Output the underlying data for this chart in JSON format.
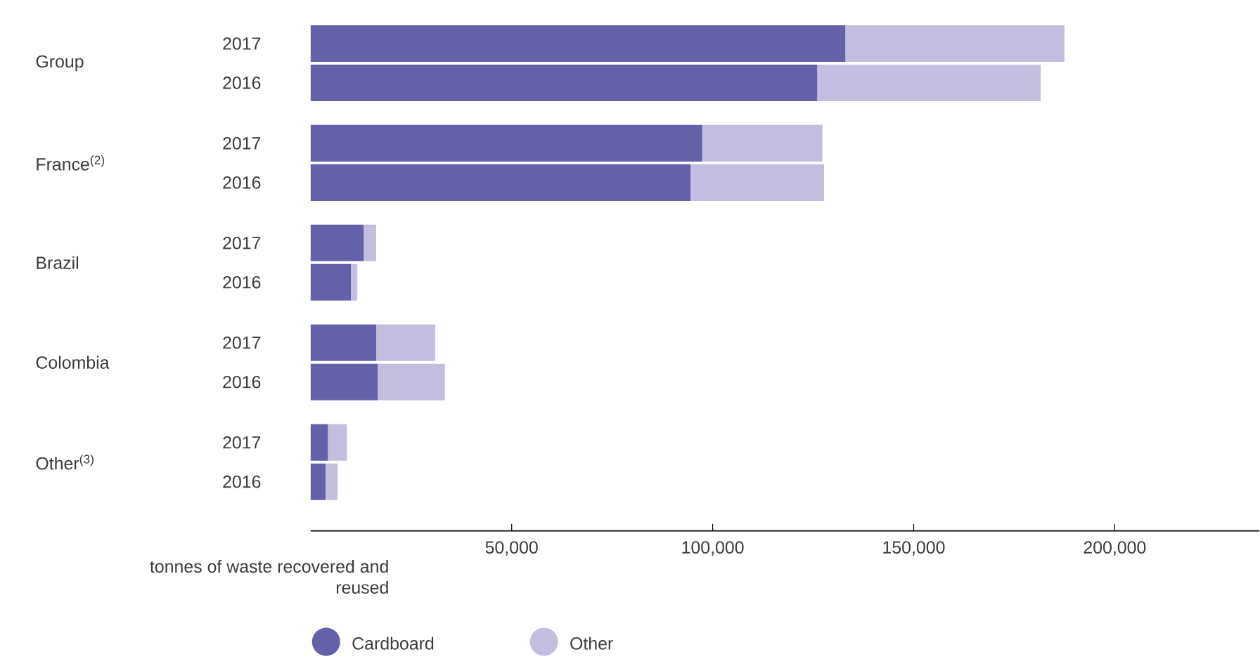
{
  "chart_data": {
    "type": "bar",
    "orientation": "horizontal",
    "stacked": true,
    "categories": [
      "2017",
      "2016",
      "2017",
      "2016",
      "2017",
      "2016",
      "2017",
      "2016",
      "2017",
      "2016"
    ],
    "series": [
      {
        "name": "Cardboard",
        "color": "#6461a8",
        "values": [
          133000,
          126000,
          97400,
          94500,
          13200,
          10000,
          16300,
          16700,
          4300,
          3700
        ]
      },
      {
        "name": "Other",
        "color": "#c3bedf",
        "values": [
          54500,
          55600,
          29900,
          33200,
          3100,
          1600,
          14700,
          16700,
          4700,
          3000
        ]
      }
    ],
    "annotations": [
      "Group",
      "France$^{(2)}$",
      "Brazil",
      "Colombia",
      "Other$^{(3)}$"
    ],
    "xlabel": "tonnes of waste recovered and reused",
    "xlim": [
      0,
      236000
    ],
    "xticks": [
      {
        "value": 50000,
        "label": "50,000"
      },
      {
        "value": 100000,
        "label": "100,000"
      },
      {
        "value": 150000,
        "label": "150,000"
      },
      {
        "value": 200000,
        "label": "200,000"
      }
    ],
    "legend": "bottom",
    "grid": false
  }
}
